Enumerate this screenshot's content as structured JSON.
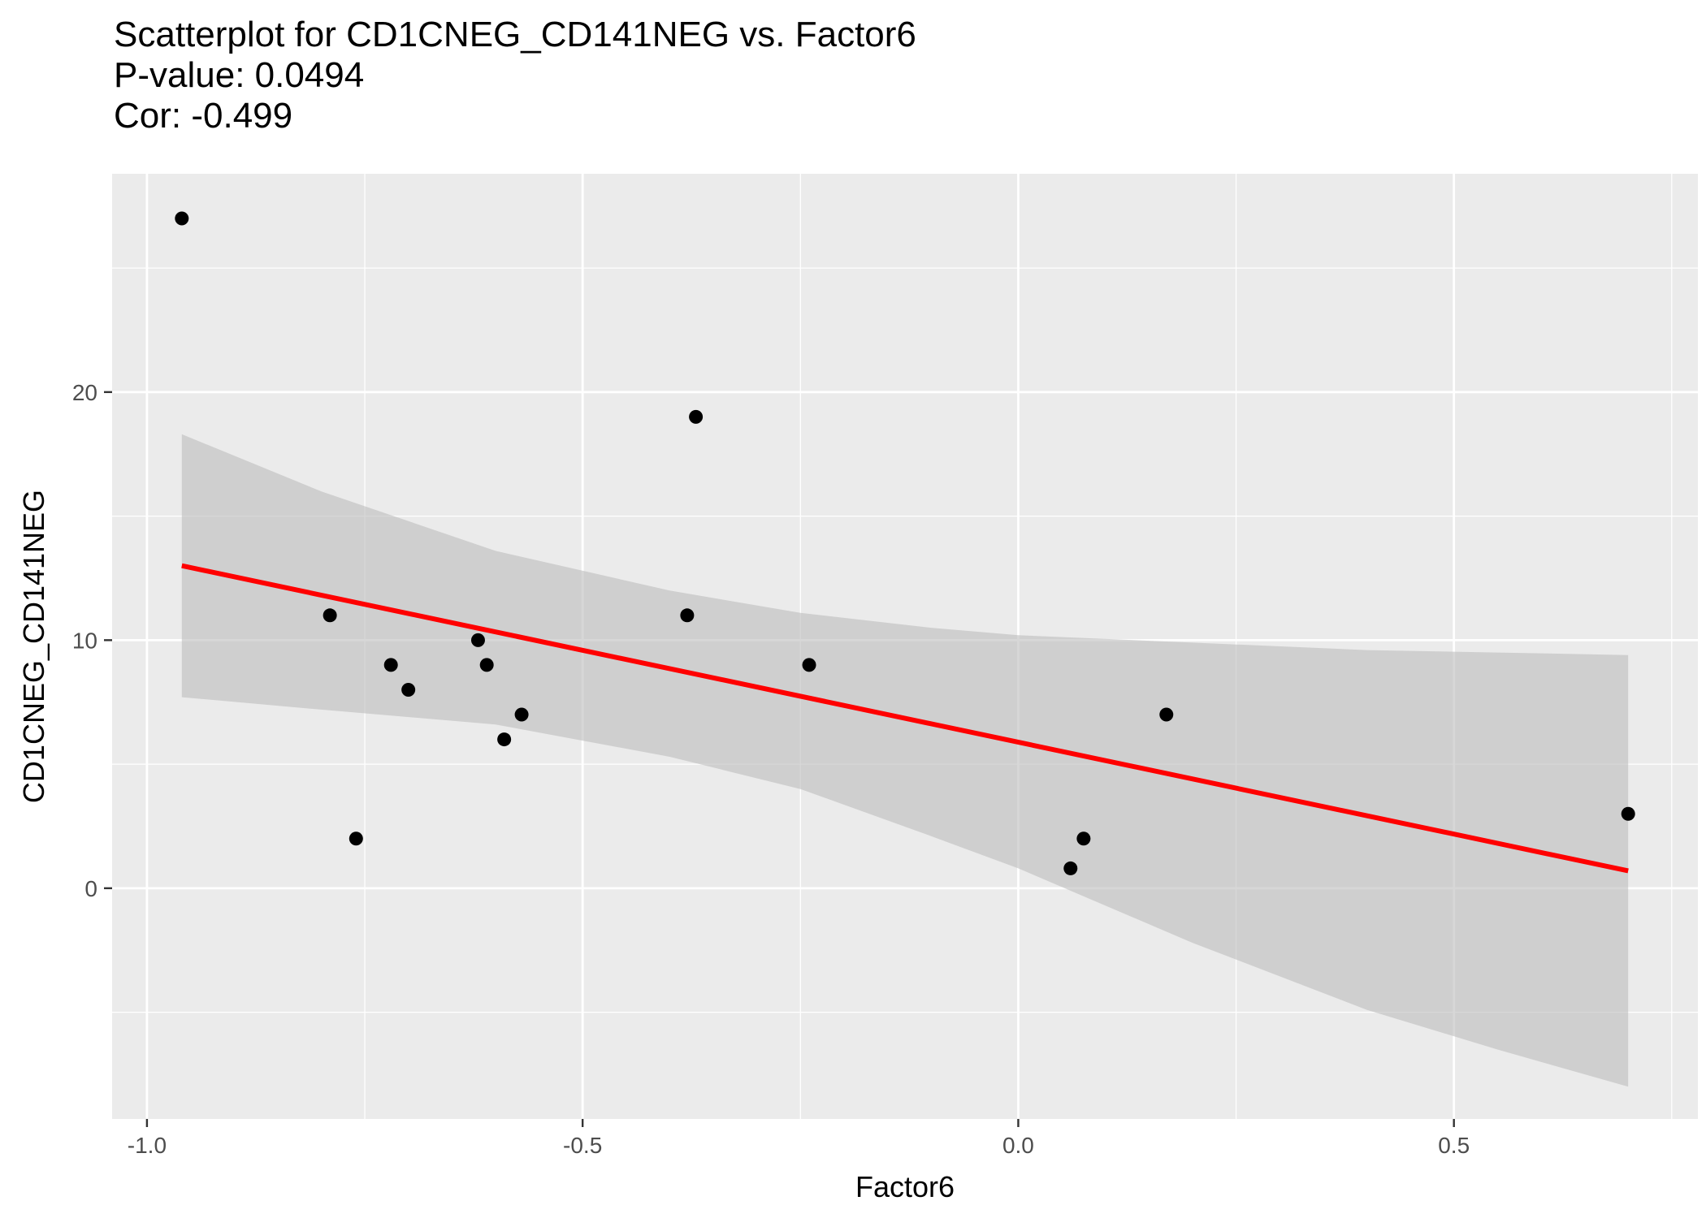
{
  "title_lines": {
    "line1": "Scatterplot for CD1CNEG_CD141NEG vs. Factor6",
    "line2": "P-value: 0.0494",
    "line3": "Cor: -0.499"
  },
  "chart_data": {
    "type": "scatter",
    "title": "Scatterplot for CD1CNEG_CD141NEG vs. Factor6",
    "subtitle": [
      "P-value: 0.0494",
      "Cor: -0.499"
    ],
    "xlabel": "Factor6",
    "ylabel": "CD1CNEG_CD141NEG",
    "xlim": [
      -1.04,
      0.78
    ],
    "ylim": [
      -9.3,
      28.8
    ],
    "x_ticks": [
      -1.0,
      -0.5,
      0.0,
      0.5
    ],
    "x_tick_labels": [
      "-1.0",
      "-0.5",
      "0.0",
      "0.5"
    ],
    "y_ticks": [
      0,
      10,
      20
    ],
    "y_tick_labels": [
      "0",
      "10",
      "20"
    ],
    "grid": true,
    "panel_background": "#ebebeb",
    "grid_color": "#ffffff",
    "point_color": "#000000",
    "fit_color": "#ff0000",
    "ci_color": "#bdbdbd",
    "points": [
      {
        "x": -0.96,
        "y": 27
      },
      {
        "x": -0.79,
        "y": 11
      },
      {
        "x": -0.76,
        "y": 2
      },
      {
        "x": -0.72,
        "y": 9
      },
      {
        "x": -0.7,
        "y": 8
      },
      {
        "x": -0.62,
        "y": 10
      },
      {
        "x": -0.61,
        "y": 9
      },
      {
        "x": -0.59,
        "y": 6
      },
      {
        "x": -0.57,
        "y": 7
      },
      {
        "x": -0.38,
        "y": 11
      },
      {
        "x": -0.37,
        "y": 19
      },
      {
        "x": -0.24,
        "y": 9
      },
      {
        "x": 0.06,
        "y": 0.8
      },
      {
        "x": 0.075,
        "y": 2
      },
      {
        "x": 0.17,
        "y": 7
      },
      {
        "x": 0.7,
        "y": 3
      }
    ],
    "fit_line": [
      {
        "x": -0.96,
        "y": 13.0
      },
      {
        "x": 0.7,
        "y": 0.7
      }
    ],
    "confidence_band": {
      "x": [
        -0.96,
        -0.8,
        -0.6,
        -0.4,
        -0.25,
        -0.1,
        0.0,
        0.2,
        0.4,
        0.55,
        0.7
      ],
      "upper": [
        18.3,
        16.0,
        13.6,
        12.0,
        11.1,
        10.5,
        10.2,
        9.9,
        9.6,
        9.5,
        9.4
      ],
      "lower": [
        7.7,
        7.2,
        6.6,
        5.3,
        4.0,
        2.1,
        0.8,
        -2.2,
        -4.9,
        -6.5,
        -8.0
      ]
    }
  }
}
